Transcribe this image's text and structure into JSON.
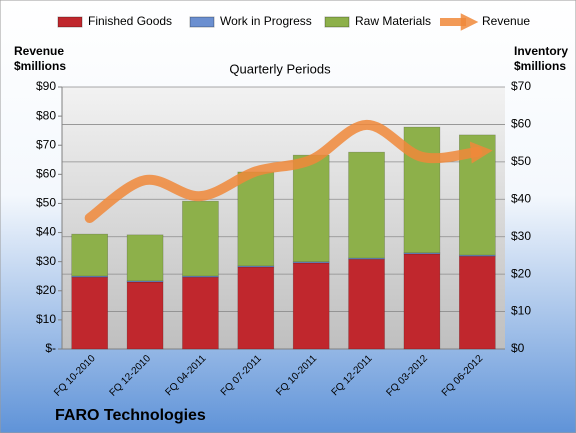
{
  "chart_data": {
    "type": "bar",
    "stacked": true,
    "title": "FARO Technologies",
    "subtitle": "Quarterly Periods",
    "ylabel": "Revenue $millions",
    "y2label": "Inventory $millions",
    "legend": "top",
    "categories": [
      "FQ 10-2010",
      "FQ 12-2010",
      "FQ 04-2011",
      "FQ 07-2011",
      "FQ 10-2011",
      "FQ 12-2011",
      "FQ 03-2012",
      "FQ 06-2012"
    ],
    "series": [
      {
        "name": "Finished Goods",
        "color": "#c0272d",
        "axis": "y2",
        "values": [
          19.2,
          17.9,
          19.2,
          21.9,
          23.0,
          24.0,
          25.4,
          24.8
        ]
      },
      {
        "name": "Work in Progress",
        "color": "#6b8fd0",
        "axis": "y2",
        "values": [
          0.3,
          0.3,
          0.3,
          0.3,
          0.3,
          0.3,
          0.3,
          0.3
        ]
      },
      {
        "name": "Raw Materials",
        "color": "#8db04a",
        "axis": "y2",
        "values": [
          11.2,
          12.3,
          20.0,
          25.1,
          28.5,
          28.3,
          33.6,
          32.1
        ]
      },
      {
        "name": "Revenue",
        "color": "#f0883a",
        "axis": "y",
        "type": "line",
        "values": [
          45,
          58,
          52.5,
          61,
          65,
          77,
          66,
          67.7
        ]
      }
    ],
    "ylim": [
      0,
      90
    ],
    "yticks": [
      {
        "value": 0,
        "label": "$-"
      },
      {
        "value": 10,
        "label": "$10"
      },
      {
        "value": 20,
        "label": "$20"
      },
      {
        "value": 30,
        "label": "$30"
      },
      {
        "value": 40,
        "label": "$40"
      },
      {
        "value": 50,
        "label": "$50"
      },
      {
        "value": 60,
        "label": "$60"
      },
      {
        "value": 70,
        "label": "$70"
      },
      {
        "value": 80,
        "label": "$80"
      },
      {
        "value": 90,
        "label": "$90"
      }
    ],
    "y2lim": [
      0,
      70
    ],
    "y2ticks": [
      {
        "value": 0,
        "label": "$0"
      },
      {
        "value": 10,
        "label": "$10"
      },
      {
        "value": 20,
        "label": "$20"
      },
      {
        "value": 30,
        "label": "$30"
      },
      {
        "value": 40,
        "label": "$40"
      },
      {
        "value": 50,
        "label": "$50"
      },
      {
        "value": 60,
        "label": "$60"
      },
      {
        "value": 70,
        "label": "$70"
      }
    ],
    "grid": true
  }
}
